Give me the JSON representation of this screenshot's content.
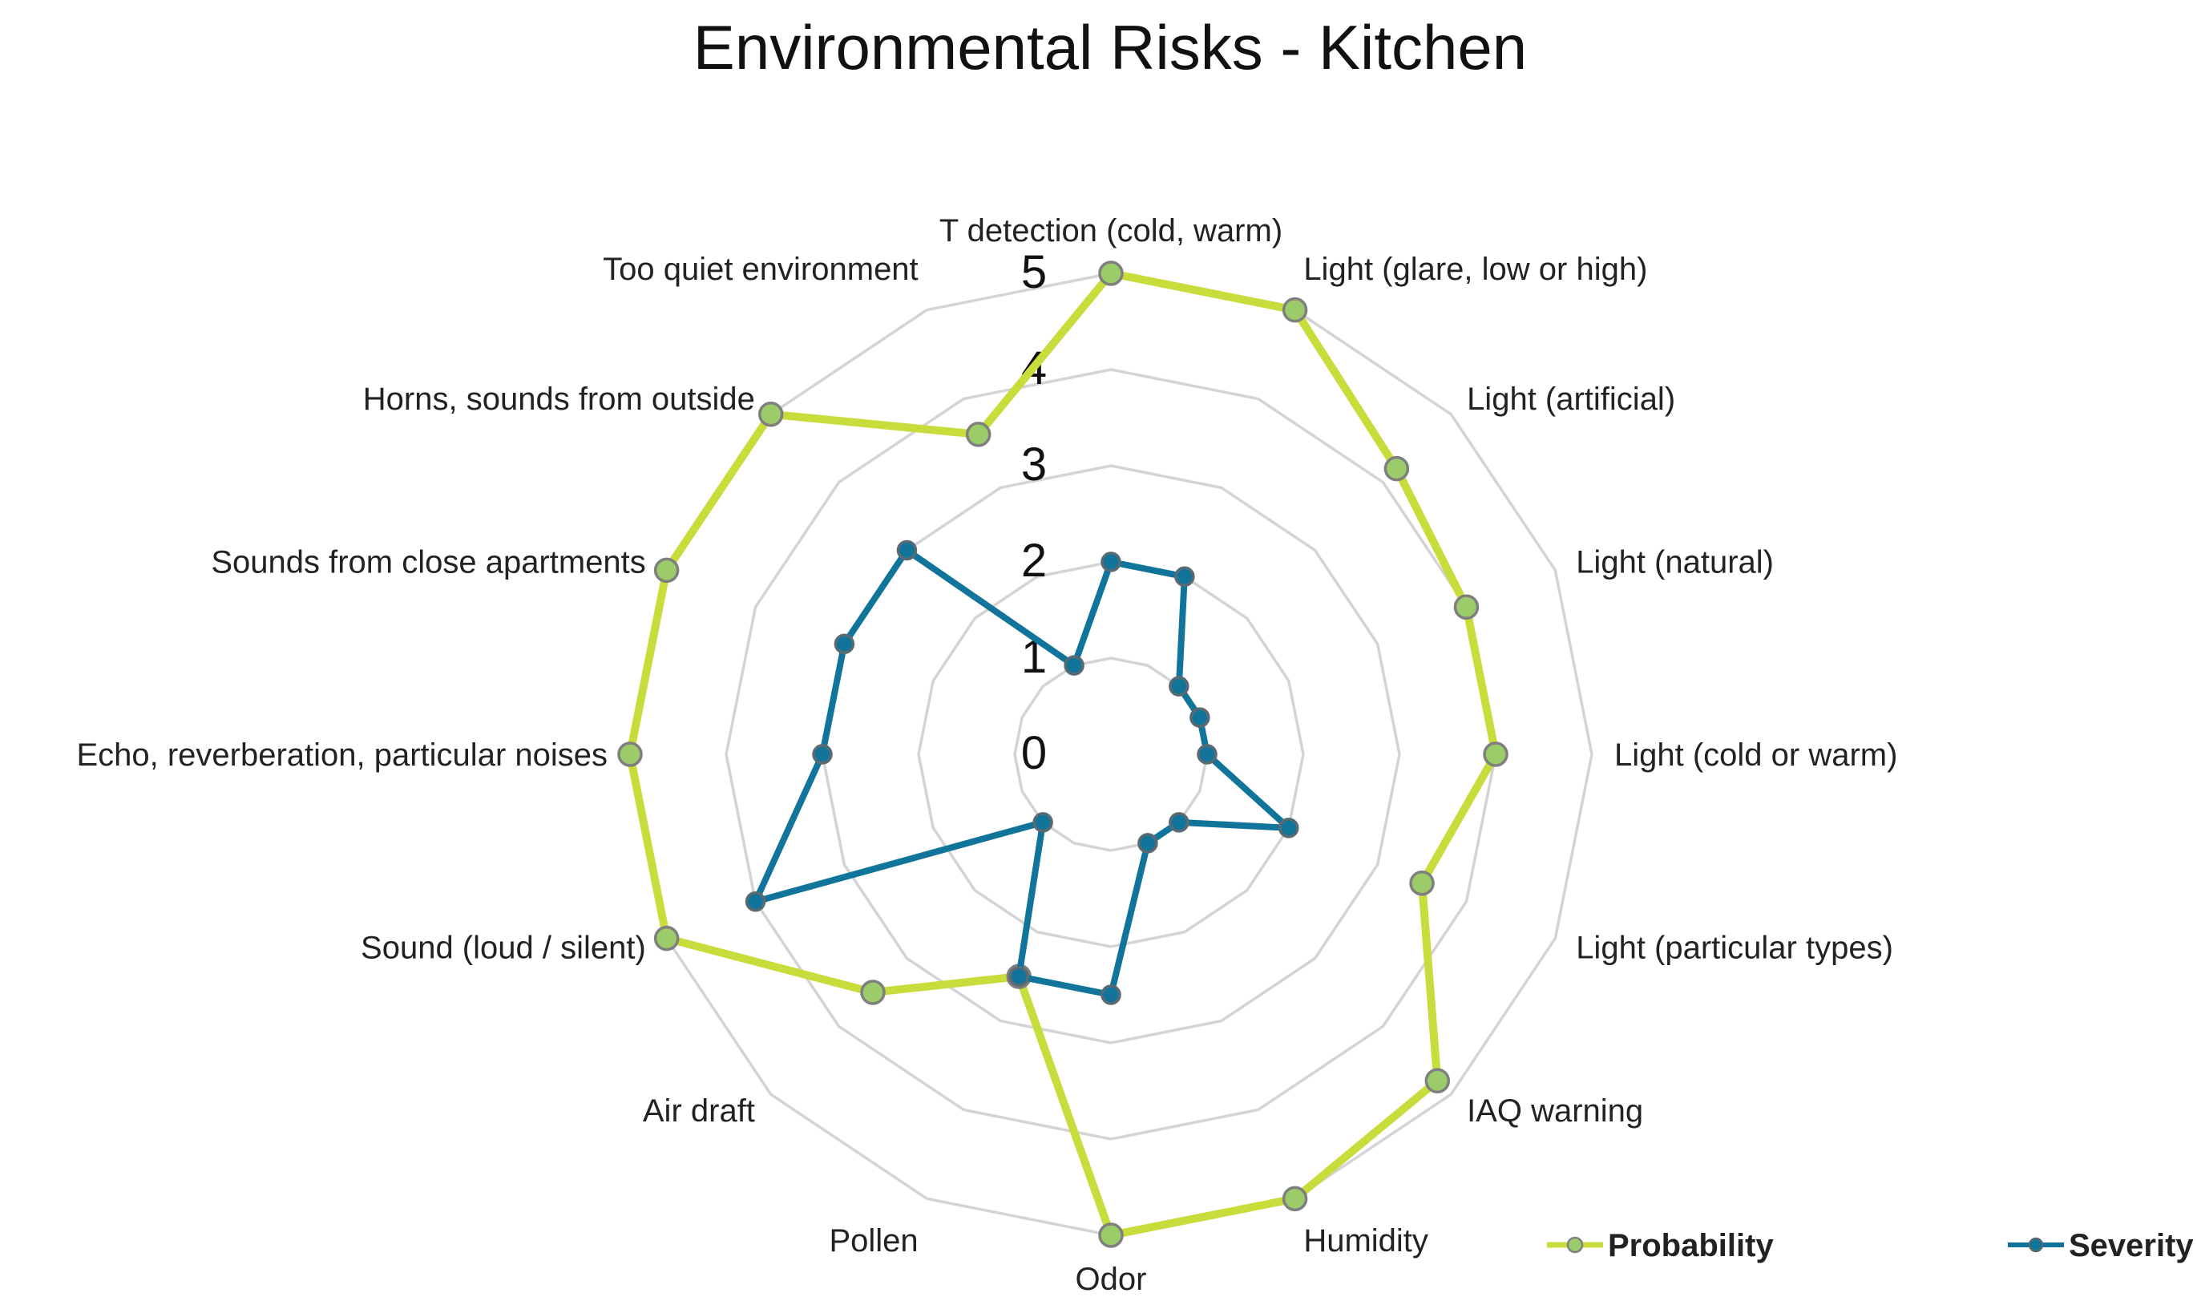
{
  "chart_data": {
    "type": "radar",
    "title": "Environmental Risks - Kitchen",
    "categories": [
      "T detection (cold, warm)",
      "Light (glare, low or high)",
      "Light (artificial)",
      "Light (natural)",
      "Light (cold or warm)",
      "Light (particular types)",
      "IAQ warning",
      "Humidity",
      "Odor",
      "Pollen",
      "Air draft",
      "Sound (loud / silent)",
      "Echo, reverberation, particular noises",
      "Sounds from close apartments",
      "Horns, sounds from outside",
      "Too quiet environment"
    ],
    "series": [
      {
        "name": "Probability",
        "color": "#c8dc3c",
        "marker_color": "#9ccc6a",
        "values": [
          5,
          5,
          4.2,
          4,
          4,
          3.5,
          4.8,
          5,
          5,
          2.5,
          3.5,
          5,
          5,
          5,
          5,
          3.6
        ]
      },
      {
        "name": "Severity",
        "color": "#11759b",
        "marker_color": "#11759b",
        "values": [
          2,
          2,
          1,
          1,
          1,
          2,
          1,
          1,
          2.5,
          2.5,
          1,
          4,
          3,
          3,
          3,
          1
        ]
      }
    ],
    "rlim": [
      0,
      5
    ],
    "ticks": [
      "0",
      "1",
      "2",
      "3",
      "4",
      "5"
    ],
    "grid": true,
    "legend_position": "bottom-right"
  }
}
